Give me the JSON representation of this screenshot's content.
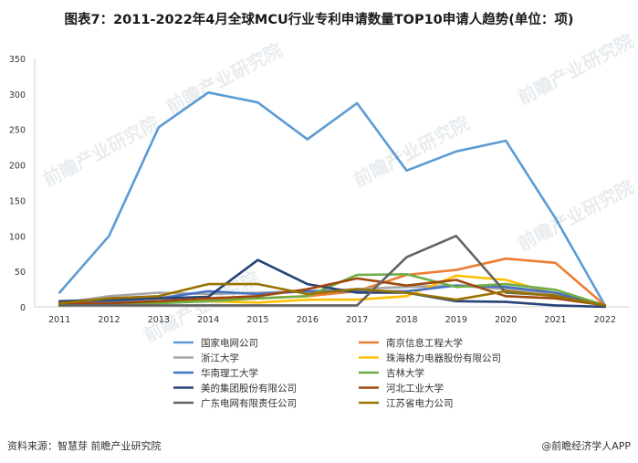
{
  "title": "图表7：2011-2022年4月全球MCU行业专利申请数量TOP10申请人趋势(单位：项)",
  "watermark": "前瞻产业研究院",
  "source": "资料来源：智慧芽 前瞻产业研究院",
  "brand": "@前瞻经济学人APP",
  "chart_data": {
    "type": "line",
    "x": [
      "2011",
      "2012",
      "2013",
      "2014",
      "2015",
      "2016",
      "2017",
      "2018",
      "2019",
      "2020",
      "2021",
      "2022"
    ],
    "ylim": [
      0,
      350
    ],
    "yticks": [
      0,
      50,
      100,
      150,
      200,
      250,
      300,
      350
    ],
    "grid": false,
    "legend_position": "bottom",
    "series": [
      {
        "name": "国家电网公司",
        "color": "#5b9bd5",
        "values": [
          20,
          100,
          253,
          302,
          288,
          236,
          287,
          192,
          219,
          234,
          125,
          2
        ]
      },
      {
        "name": "南京信息工程大学",
        "color": "#ed7d31",
        "values": [
          3,
          5,
          8,
          10,
          12,
          15,
          22,
          45,
          52,
          68,
          62,
          2
        ]
      },
      {
        "name": "浙江大学",
        "color": "#a5a5a5",
        "values": [
          5,
          15,
          20,
          18,
          20,
          22,
          25,
          28,
          30,
          25,
          18,
          2
        ]
      },
      {
        "name": "珠海格力电器股份有限公司",
        "color": "#ffc000",
        "values": [
          2,
          5,
          8,
          8,
          6,
          10,
          10,
          15,
          44,
          38,
          18,
          2
        ]
      },
      {
        "name": "华南理工大学",
        "color": "#4472c4",
        "values": [
          6,
          8,
          12,
          22,
          18,
          22,
          22,
          22,
          30,
          28,
          20,
          2
        ]
      },
      {
        "name": "吉林大学",
        "color": "#70ad47",
        "values": [
          2,
          3,
          5,
          8,
          12,
          15,
          45,
          46,
          28,
          32,
          24,
          2
        ]
      },
      {
        "name": "美的集团股份有限公司",
        "color": "#264478",
        "values": [
          8,
          10,
          12,
          14,
          66,
          32,
          20,
          20,
          8,
          7,
          2,
          0
        ]
      },
      {
        "name": "河北工业大学",
        "color": "#9e480e",
        "values": [
          5,
          5,
          8,
          12,
          15,
          25,
          40,
          30,
          38,
          15,
          12,
          2
        ]
      },
      {
        "name": "广东电网有限责任公司",
        "color": "#636363",
        "values": [
          2,
          2,
          2,
          2,
          2,
          2,
          2,
          70,
          100,
          20,
          16,
          2
        ]
      },
      {
        "name": "江苏省电力公司",
        "color": "#997300",
        "values": [
          5,
          12,
          15,
          32,
          32,
          18,
          25,
          20,
          10,
          22,
          15,
          2
        ]
      }
    ]
  }
}
